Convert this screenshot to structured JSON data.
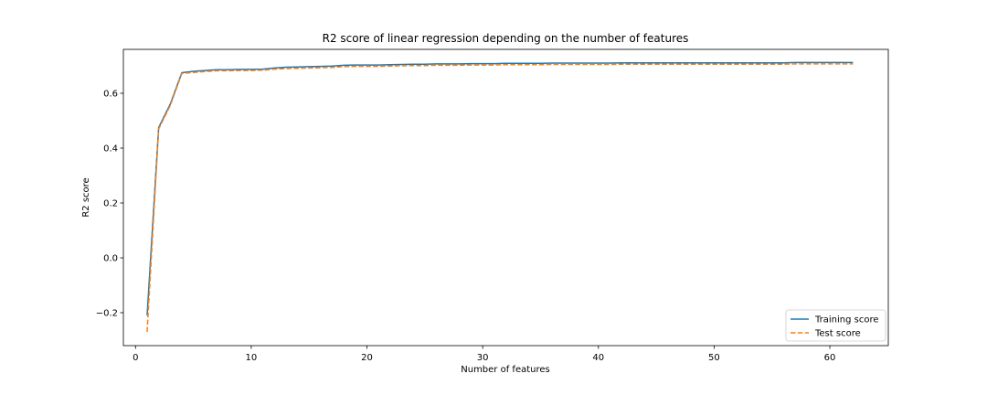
{
  "chart_data": {
    "type": "line",
    "title": "R2 score of linear regression depending on the number of features",
    "xlabel": "Number of features",
    "ylabel": "R2 score",
    "xlim": [
      -1.05,
      65.05
    ],
    "ylim": [
      -0.32,
      0.76
    ],
    "xticks": [
      0,
      10,
      20,
      30,
      40,
      50,
      60
    ],
    "xtick_labels": [
      "0",
      "10",
      "20",
      "30",
      "40",
      "50",
      "60"
    ],
    "yticks": [
      -0.2,
      0.0,
      0.2,
      0.4,
      0.6
    ],
    "ytick_labels": [
      "−0.2",
      "0.0",
      "0.2",
      "0.4",
      "0.6"
    ],
    "grid": false,
    "legend_position": "lower-right",
    "x": [
      1,
      2,
      3,
      4,
      5,
      6,
      7,
      8,
      9,
      10,
      11,
      12,
      13,
      14,
      15,
      16,
      17,
      18,
      19,
      20,
      21,
      22,
      23,
      24,
      25,
      26,
      27,
      28,
      29,
      30,
      31,
      32,
      33,
      34,
      35,
      36,
      37,
      38,
      39,
      40,
      41,
      42,
      43,
      44,
      45,
      46,
      47,
      48,
      49,
      50,
      51,
      52,
      53,
      54,
      55,
      56,
      57,
      58,
      59,
      60,
      61,
      62
    ],
    "series": [
      {
        "name": "Training score",
        "color": "#1f77b4",
        "style": "solid",
        "values": [
          -0.21,
          0.475,
          0.56,
          0.675,
          0.68,
          0.683,
          0.686,
          0.686,
          0.687,
          0.687,
          0.688,
          0.692,
          0.695,
          0.696,
          0.697,
          0.698,
          0.699,
          0.702,
          0.703,
          0.703,
          0.703,
          0.704,
          0.705,
          0.706,
          0.706,
          0.707,
          0.707,
          0.707,
          0.708,
          0.708,
          0.708,
          0.709,
          0.709,
          0.709,
          0.709,
          0.71,
          0.71,
          0.71,
          0.71,
          0.71,
          0.71,
          0.711,
          0.711,
          0.711,
          0.711,
          0.711,
          0.711,
          0.711,
          0.711,
          0.711,
          0.711,
          0.711,
          0.711,
          0.711,
          0.711,
          0.711,
          0.712,
          0.712,
          0.712,
          0.712,
          0.712,
          0.712
        ]
      },
      {
        "name": "Test score",
        "color": "#ff7f0e",
        "style": "dashed",
        "values": [
          -0.27,
          0.47,
          0.555,
          0.672,
          0.676,
          0.679,
          0.682,
          0.682,
          0.683,
          0.683,
          0.684,
          0.688,
          0.69,
          0.691,
          0.692,
          0.693,
          0.694,
          0.697,
          0.698,
          0.698,
          0.698,
          0.699,
          0.7,
          0.701,
          0.701,
          0.702,
          0.702,
          0.702,
          0.703,
          0.703,
          0.703,
          0.704,
          0.704,
          0.704,
          0.704,
          0.705,
          0.705,
          0.705,
          0.705,
          0.705,
          0.705,
          0.706,
          0.706,
          0.706,
          0.706,
          0.706,
          0.706,
          0.706,
          0.706,
          0.706,
          0.706,
          0.706,
          0.706,
          0.706,
          0.706,
          0.706,
          0.707,
          0.707,
          0.707,
          0.707,
          0.707,
          0.707
        ]
      }
    ]
  }
}
